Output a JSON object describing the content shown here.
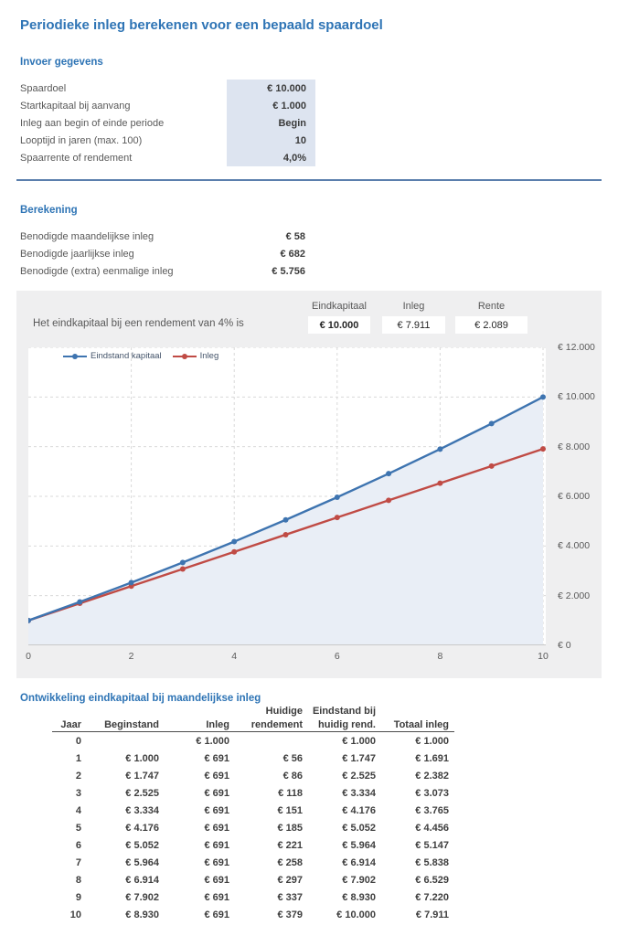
{
  "page": {
    "title": "Periodieke inleg berekenen voor een bepaald spaardoel"
  },
  "input_section": {
    "heading": "Invoer gegevens",
    "rows": [
      {
        "label": "Spaardoel",
        "value": "€ 10.000"
      },
      {
        "label": "Startkapitaal bij aanvang",
        "value": "€ 1.000"
      },
      {
        "label": "Inleg aan begin of einde periode",
        "value": "Begin"
      },
      {
        "label": "Looptijd in jaren (max. 100)",
        "value": "10"
      },
      {
        "label": "Spaarrente of rendement",
        "value": "4,0%"
      }
    ]
  },
  "calc_section": {
    "heading": "Berekening",
    "rows": [
      {
        "label": "Benodigde maandelijkse inleg",
        "value": "€ 58"
      },
      {
        "label": "Benodigde jaarlijkse inleg",
        "value": "€ 682"
      },
      {
        "label": "Benodigde (extra) eenmalige inleg",
        "value": "€ 5.756"
      }
    ]
  },
  "chart_panel": {
    "summary_label": "Het eindkapitaal bij een rendement van 4% is",
    "stats": [
      {
        "label": "Eindkapitaal",
        "value": "€ 10.000",
        "bold": true
      },
      {
        "label": "Inleg",
        "value": "€ 7.911",
        "bold": false
      },
      {
        "label": "Rente",
        "value": "€ 2.089",
        "bold": false
      }
    ]
  },
  "chart_data": {
    "type": "line",
    "x": [
      0,
      1,
      2,
      3,
      4,
      5,
      6,
      7,
      8,
      9,
      10
    ],
    "series": [
      {
        "name": "Eindstand kapitaal",
        "color": "#3e74b0",
        "area_fill": "#e9eef6",
        "values": [
          1000,
          1747,
          2525,
          3334,
          4176,
          5052,
          5964,
          6914,
          7902,
          8930,
          10000
        ]
      },
      {
        "name": "Inleg",
        "color": "#c04b45",
        "area_fill": null,
        "values": [
          1000,
          1691,
          2382,
          3073,
          3765,
          4456,
          5147,
          5838,
          6529,
          7220,
          7911
        ]
      }
    ],
    "title": "",
    "xlabel": "",
    "ylabel": "",
    "xlim": [
      0,
      10
    ],
    "ylim": [
      0,
      12000
    ],
    "grid": true,
    "grid_style": "dashed",
    "legend_position": "top-left",
    "x_ticks": [
      0,
      2,
      4,
      6,
      8,
      10
    ],
    "x_tick_labels": [
      "0",
      "2",
      "4",
      "6",
      "8",
      "10"
    ],
    "y_ticks": [
      0,
      2000,
      4000,
      6000,
      8000,
      10000,
      12000
    ],
    "y_tick_labels": [
      "€ 0",
      "€ 2.000",
      "€ 4.000",
      "€ 6.000",
      "€ 8.000",
      "€ 10.000",
      "€ 12.000"
    ]
  },
  "table_section": {
    "title": "Ontwikkeling eindkapitaal bij maandelijkse inleg",
    "header_line1": [
      "",
      "",
      "",
      "Huidige",
      "Eindstand bij",
      ""
    ],
    "header_line2": [
      "Jaar",
      "Beginstand",
      "Inleg",
      "rendement",
      "huidig rend.",
      "Totaal inleg"
    ],
    "rows": [
      [
        "0",
        "",
        "€ 1.000",
        "",
        "€ 1.000",
        "€ 1.000"
      ],
      [
        "1",
        "€ 1.000",
        "€ 691",
        "€ 56",
        "€ 1.747",
        "€ 1.691"
      ],
      [
        "2",
        "€ 1.747",
        "€ 691",
        "€ 86",
        "€ 2.525",
        "€ 2.382"
      ],
      [
        "3",
        "€ 2.525",
        "€ 691",
        "€ 118",
        "€ 3.334",
        "€ 3.073"
      ],
      [
        "4",
        "€ 3.334",
        "€ 691",
        "€ 151",
        "€ 4.176",
        "€ 3.765"
      ],
      [
        "5",
        "€ 4.176",
        "€ 691",
        "€ 185",
        "€ 5.052",
        "€ 4.456"
      ],
      [
        "6",
        "€ 5.052",
        "€ 691",
        "€ 221",
        "€ 5.964",
        "€ 5.147"
      ],
      [
        "7",
        "€ 5.964",
        "€ 691",
        "€ 258",
        "€ 6.914",
        "€ 5.838"
      ],
      [
        "8",
        "€ 6.914",
        "€ 691",
        "€ 297",
        "€ 7.902",
        "€ 6.529"
      ],
      [
        "9",
        "€ 7.902",
        "€ 691",
        "€ 337",
        "€ 8.930",
        "€ 7.220"
      ],
      [
        "10",
        "€ 8.930",
        "€ 691",
        "€ 379",
        "€ 10.000",
        "€ 7.911"
      ]
    ]
  },
  "colors": {
    "heading_blue": "#2e74b5",
    "series_blue": "#3e74b0",
    "series_red": "#c04b45",
    "panel_bg": "#efeff0",
    "input_fill": "#dde4f0",
    "divider_blue": "#5b7fad",
    "gridline": "#d9d9d9"
  }
}
